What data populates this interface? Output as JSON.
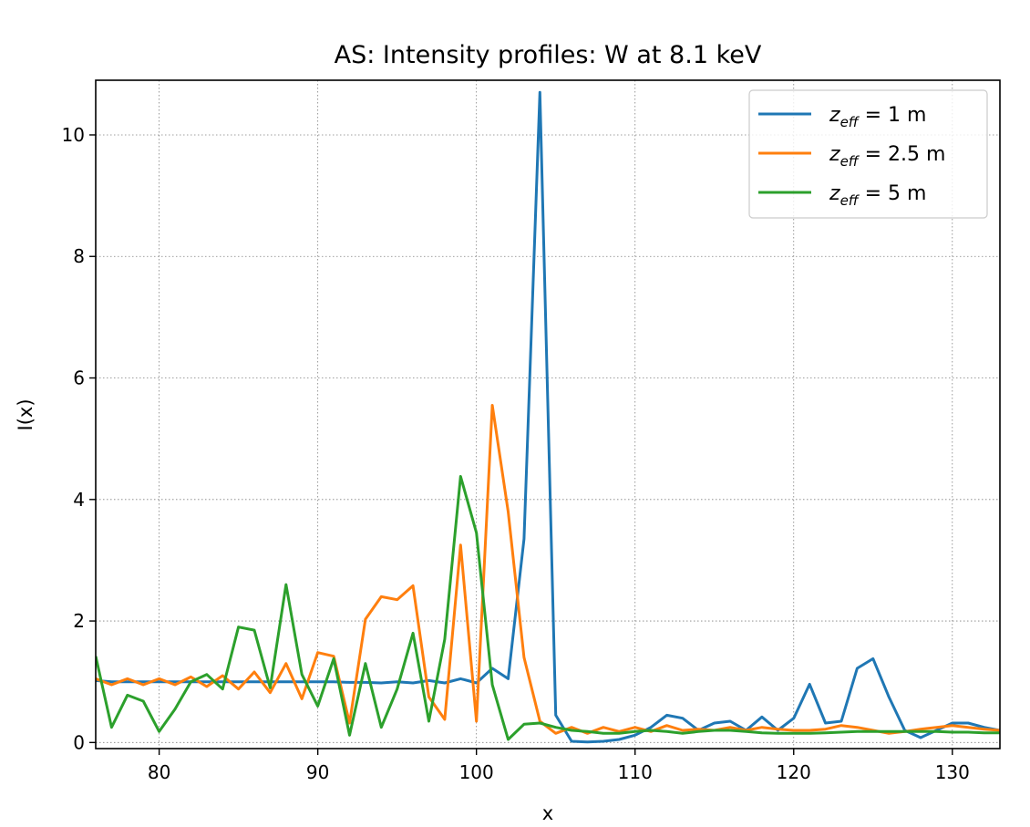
{
  "chart_data": {
    "type": "line",
    "title": "AS: Intensity profiles: W at 8.1 keV",
    "xlabel": "x",
    "ylabel": "I(x)",
    "xlim": [
      76,
      133
    ],
    "ylim": [
      -0.1,
      10.9
    ],
    "xticks": [
      80,
      90,
      100,
      110,
      120,
      130
    ],
    "yticks": [
      0,
      2,
      4,
      6,
      8,
      10
    ],
    "grid": true,
    "legend_position": "top-right",
    "x": [
      76,
      77,
      78,
      79,
      80,
      81,
      82,
      83,
      84,
      85,
      86,
      87,
      88,
      89,
      90,
      91,
      92,
      93,
      94,
      95,
      96,
      97,
      98,
      99,
      100,
      101,
      102,
      103,
      104,
      105,
      106,
      107,
      108,
      109,
      110,
      111,
      112,
      113,
      114,
      115,
      116,
      117,
      118,
      119,
      120,
      121,
      122,
      123,
      124,
      125,
      126,
      127,
      128,
      129,
      130,
      131,
      132,
      133
    ],
    "series": [
      {
        "name_var": "z",
        "name_sub": "eff",
        "name_rest": " = 1 m",
        "color": "#1f77b4",
        "values": [
          1.02,
          1.0,
          1.0,
          1.0,
          1.0,
          1.0,
          1.0,
          1.0,
          1.0,
          1.0,
          1.0,
          1.0,
          1.0,
          1.0,
          1.0,
          1.0,
          0.99,
          0.99,
          0.98,
          1.0,
          0.98,
          1.02,
          0.98,
          1.05,
          0.98,
          1.22,
          1.05,
          3.35,
          10.7,
          0.45,
          0.02,
          0.01,
          0.02,
          0.05,
          0.12,
          0.25,
          0.45,
          0.4,
          0.2,
          0.32,
          0.35,
          0.2,
          0.42,
          0.2,
          0.4,
          0.96,
          0.32,
          0.35,
          1.22,
          1.38,
          0.75,
          0.2,
          0.08,
          0.2,
          0.32,
          0.32,
          0.25,
          0.2
        ]
      },
      {
        "name_var": "z",
        "name_sub": "eff",
        "name_rest": " = 2.5 m",
        "color": "#ff7f0e",
        "values": [
          1.05,
          0.95,
          1.05,
          0.95,
          1.05,
          0.95,
          1.08,
          0.92,
          1.1,
          0.88,
          1.16,
          0.82,
          1.3,
          0.72,
          1.48,
          1.42,
          0.32,
          2.03,
          2.4,
          2.35,
          2.58,
          0.75,
          0.38,
          3.25,
          0.35,
          5.55,
          3.8,
          1.4,
          0.35,
          0.15,
          0.25,
          0.15,
          0.25,
          0.18,
          0.25,
          0.18,
          0.28,
          0.2,
          0.22,
          0.2,
          0.25,
          0.2,
          0.25,
          0.22,
          0.2,
          0.2,
          0.22,
          0.28,
          0.25,
          0.2,
          0.15,
          0.18,
          0.22,
          0.25,
          0.28,
          0.25,
          0.22,
          0.2
        ]
      },
      {
        "name_var": "z",
        "name_sub": "eff",
        "name_rest": " = 5 m",
        "color": "#2ca02c",
        "values": [
          1.42,
          0.25,
          0.78,
          0.68,
          0.18,
          0.55,
          1.0,
          1.12,
          0.88,
          1.9,
          1.85,
          0.9,
          2.6,
          1.12,
          0.6,
          1.38,
          0.12,
          1.3,
          0.25,
          0.88,
          1.8,
          0.35,
          1.7,
          4.38,
          3.45,
          0.95,
          0.05,
          0.3,
          0.32,
          0.25,
          0.2,
          0.18,
          0.15,
          0.15,
          0.18,
          0.2,
          0.18,
          0.15,
          0.18,
          0.2,
          0.2,
          0.18,
          0.16,
          0.15,
          0.15,
          0.15,
          0.16,
          0.17,
          0.18,
          0.18,
          0.18,
          0.18,
          0.18,
          0.18,
          0.17,
          0.17,
          0.16,
          0.16
        ]
      }
    ]
  }
}
